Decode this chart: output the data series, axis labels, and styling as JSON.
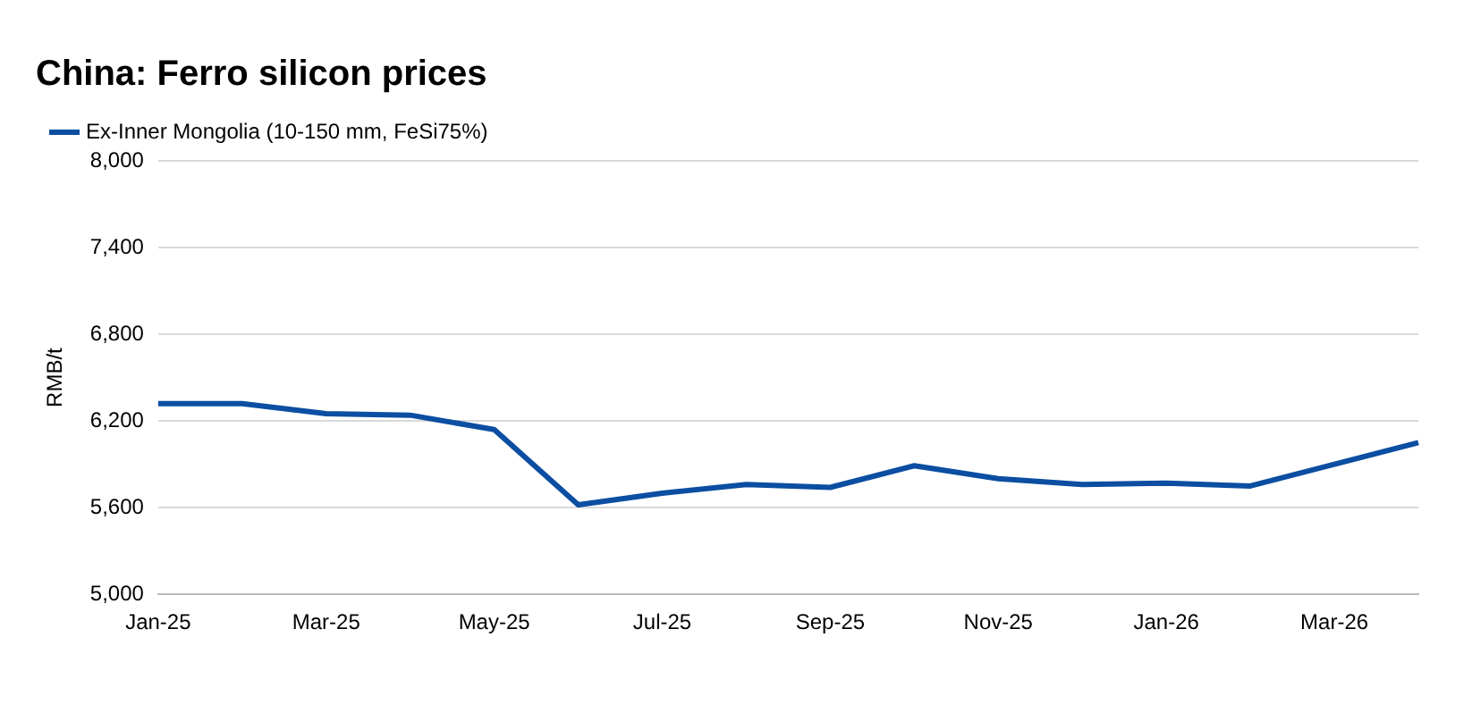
{
  "chart_data": {
    "type": "line",
    "title": "China: Ferro silicon prices",
    "ylabel": "RMB/t",
    "categories": [
      "Jan-25",
      null,
      "Mar-25",
      null,
      "May-25",
      null,
      "Jul-25",
      null,
      "Sep-25",
      null,
      "Nov-25",
      null,
      "Jan-26",
      null,
      "Mar-26",
      null
    ],
    "series": [
      {
        "name": "Ex-Inner Mongolia (10-150 mm, FeSi75%)",
        "color": "#0b4ea2",
        "values": [
          6320,
          6320,
          6250,
          6240,
          6140,
          5620,
          5700,
          5760,
          5740,
          5890,
          5800,
          5760,
          5770,
          5750,
          5900,
          6050
        ]
      }
    ],
    "ylim": [
      5000,
      8000
    ],
    "yticks": [
      {
        "value": 5000,
        "label": "5,000"
      },
      {
        "value": 5600,
        "label": "5,600"
      },
      {
        "value": 6200,
        "label": "6,200"
      },
      {
        "value": 6800,
        "label": "6,800"
      },
      {
        "value": 7400,
        "label": "7,400"
      },
      {
        "value": 8000,
        "label": "8,000"
      }
    ],
    "grid": "y",
    "legend": "top left",
    "marker": "none",
    "line_style": "solid"
  }
}
